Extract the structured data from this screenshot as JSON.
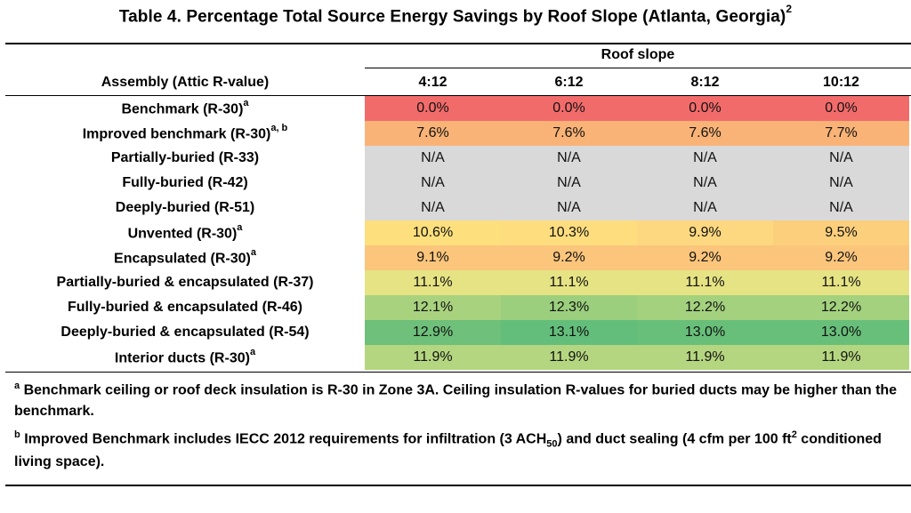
{
  "title": {
    "text": "Table 4. Percentage Total Source Energy Savings by Roof Slope (Atlanta, Georgia)",
    "sup": "2"
  },
  "header": {
    "group_label": "Roof slope",
    "row_label": "Assembly (Attic R-value)",
    "columns": [
      "4:12",
      "6:12",
      "8:12",
      "10:12"
    ]
  },
  "rows": [
    {
      "label": "Benchmark (R-30)",
      "sup": "a",
      "values": [
        "0.0%",
        "0.0%",
        "0.0%",
        "0.0%"
      ],
      "color": "#f26b6b"
    },
    {
      "label": "Improved benchmark (R-30)",
      "sup": "a, b",
      "values": [
        "7.6%",
        "7.6%",
        "7.6%",
        "7.7%"
      ],
      "color": "#f9b377"
    },
    {
      "label": "Partially-buried (R-33)",
      "sup": "",
      "values": [
        "N/A",
        "N/A",
        "N/A",
        "N/A"
      ],
      "color": "#d9d9d9"
    },
    {
      "label": "Fully-buried (R-42)",
      "sup": "",
      "values": [
        "N/A",
        "N/A",
        "N/A",
        "N/A"
      ],
      "color": "#d9d9d9"
    },
    {
      "label": "Deeply-buried (R-51)",
      "sup": "",
      "values": [
        "N/A",
        "N/A",
        "N/A",
        "N/A"
      ],
      "color": "#d9d9d9"
    },
    {
      "label": "Unvented (R-30)",
      "sup": "a",
      "values": [
        "10.6%",
        "10.3%",
        "9.9%",
        "9.5%"
      ],
      "colors": [
        "#fde07d",
        "#fedd7f",
        "#fdd880",
        "#fccf7d"
      ]
    },
    {
      "label": "Encapsulated (R-30)",
      "sup": "a",
      "values": [
        "9.1%",
        "9.2%",
        "9.2%",
        "9.2%"
      ],
      "color": "#fbc57c"
    },
    {
      "label": "Partially-buried & encapsulated (R-37)",
      "sup": "",
      "values": [
        "11.1%",
        "11.1%",
        "11.1%",
        "11.1%"
      ],
      "color": "#e6e384"
    },
    {
      "label": "Fully-buried & encapsulated (R-46)",
      "sup": "",
      "values": [
        "12.1%",
        "12.3%",
        "12.2%",
        "12.2%"
      ],
      "colors": [
        "#a9d27f",
        "#9bcf7d",
        "#a3d17e",
        "#a3d17e"
      ]
    },
    {
      "label": "Deeply-buried & encapsulated  (R-54)",
      "sup": "",
      "values": [
        "12.9%",
        "13.1%",
        "13.0%",
        "13.0%"
      ],
      "colors": [
        "#6ec07a",
        "#63be7b",
        "#68bf7a",
        "#68bf7a"
      ]
    },
    {
      "label": "Interior ducts (R-30)",
      "sup": "a",
      "values": [
        "11.9%",
        "11.9%",
        "11.9%",
        "11.9%"
      ],
      "color": "#b5d680"
    }
  ],
  "notes": {
    "a_marker": "a",
    "a_text": "Benchmark ceiling or roof deck insulation is R-30 in Zone 3A. Ceiling insulation R-values for buried ducts may be higher than the benchmark.",
    "b_marker": "b",
    "b_text_1": "Improved Benchmark includes IECC 2012 requirements for infiltration (3 ACH",
    "b_sub": "50",
    "b_text_2": ") and duct sealing (4 cfm per 100 ft",
    "b_sup": "2",
    "b_text_3": " conditioned living space)."
  }
}
